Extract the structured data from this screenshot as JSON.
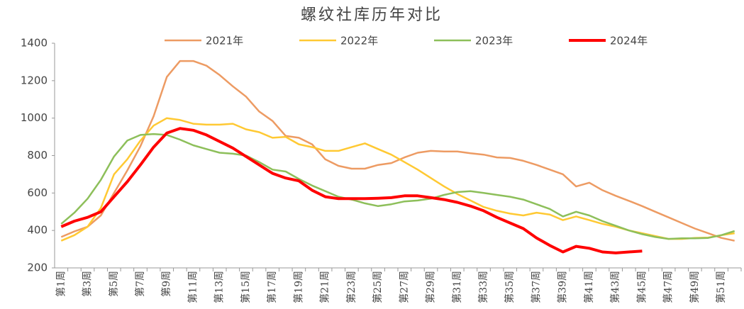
{
  "chart_data": {
    "type": "line",
    "title": "螺纹社库历年对比",
    "categories": [
      "第1周",
      null,
      "第3周",
      null,
      "第5周",
      null,
      "第7周",
      null,
      "第9周",
      null,
      "第11周",
      null,
      "第13周",
      null,
      "第15周",
      null,
      "第17周",
      null,
      "第19周",
      null,
      "第21周",
      null,
      "第23周",
      null,
      "第25周",
      null,
      "第27周",
      null,
      "第29周",
      null,
      "第31周",
      null,
      "第33周",
      null,
      "第35周",
      null,
      "第37周",
      null,
      "第39周",
      null,
      "第41周",
      null,
      "第43周",
      null,
      "第45周",
      null,
      "第47周",
      null,
      "第49周",
      null,
      "第51周",
      null
    ],
    "ylim": [
      200,
      1400
    ],
    "yticks": [
      200,
      400,
      600,
      800,
      1000,
      1200,
      1400
    ],
    "grid": false,
    "legend": "top",
    "series": [
      {
        "name": "2021年",
        "color": "#ED9B63",
        "values": [
          365,
          395,
          420,
          480,
          600,
          720,
          850,
          1010,
          1220,
          1305,
          1305,
          1280,
          1230,
          1170,
          1115,
          1035,
          985,
          905,
          895,
          860,
          780,
          745,
          730,
          730,
          750,
          760,
          790,
          815,
          825,
          822,
          822,
          812,
          805,
          790,
          787,
          772,
          750,
          725,
          700,
          635,
          655,
          615,
          585,
          558,
          530,
          500,
          470,
          440,
          410,
          385,
          360,
          345
        ]
      },
      {
        "name": "2022年",
        "color": "#FFC933",
        "values": [
          345,
          375,
          420,
          520,
          700,
          780,
          880,
          960,
          1000,
          990,
          970,
          965,
          965,
          970,
          940,
          925,
          895,
          900,
          860,
          845,
          825,
          825,
          845,
          865,
          835,
          805,
          765,
          725,
          680,
          635,
          595,
          560,
          525,
          505,
          490,
          480,
          495,
          485,
          455,
          475,
          455,
          435,
          420,
          400,
          385,
          370,
          355,
          355,
          360,
          362,
          375,
          385
        ]
      },
      {
        "name": "2023年",
        "color": "#8DBF5A",
        "values": [
          435,
          495,
          570,
          670,
          795,
          880,
          910,
          915,
          910,
          885,
          855,
          835,
          815,
          810,
          800,
          765,
          725,
          715,
          675,
          640,
          610,
          580,
          565,
          545,
          530,
          540,
          555,
          560,
          570,
          590,
          605,
          610,
          600,
          590,
          580,
          565,
          540,
          515,
          475,
          500,
          480,
          450,
          425,
          400,
          380,
          365,
          355,
          358,
          358,
          360,
          375,
          397
        ]
      },
      {
        "name": "2024年",
        "color": "#FF0000",
        "width": 4,
        "values": [
          420,
          450,
          470,
          500,
          580,
          660,
          750,
          845,
          920,
          945,
          935,
          910,
          875,
          840,
          795,
          750,
          705,
          680,
          665,
          615,
          580,
          570,
          570,
          570,
          572,
          575,
          585,
          585,
          575,
          565,
          550,
          530,
          505,
          470,
          440,
          410,
          360,
          320,
          285,
          315,
          305,
          285,
          280,
          285,
          290,
          null,
          null,
          null,
          null,
          null,
          null,
          null
        ]
      }
    ]
  }
}
